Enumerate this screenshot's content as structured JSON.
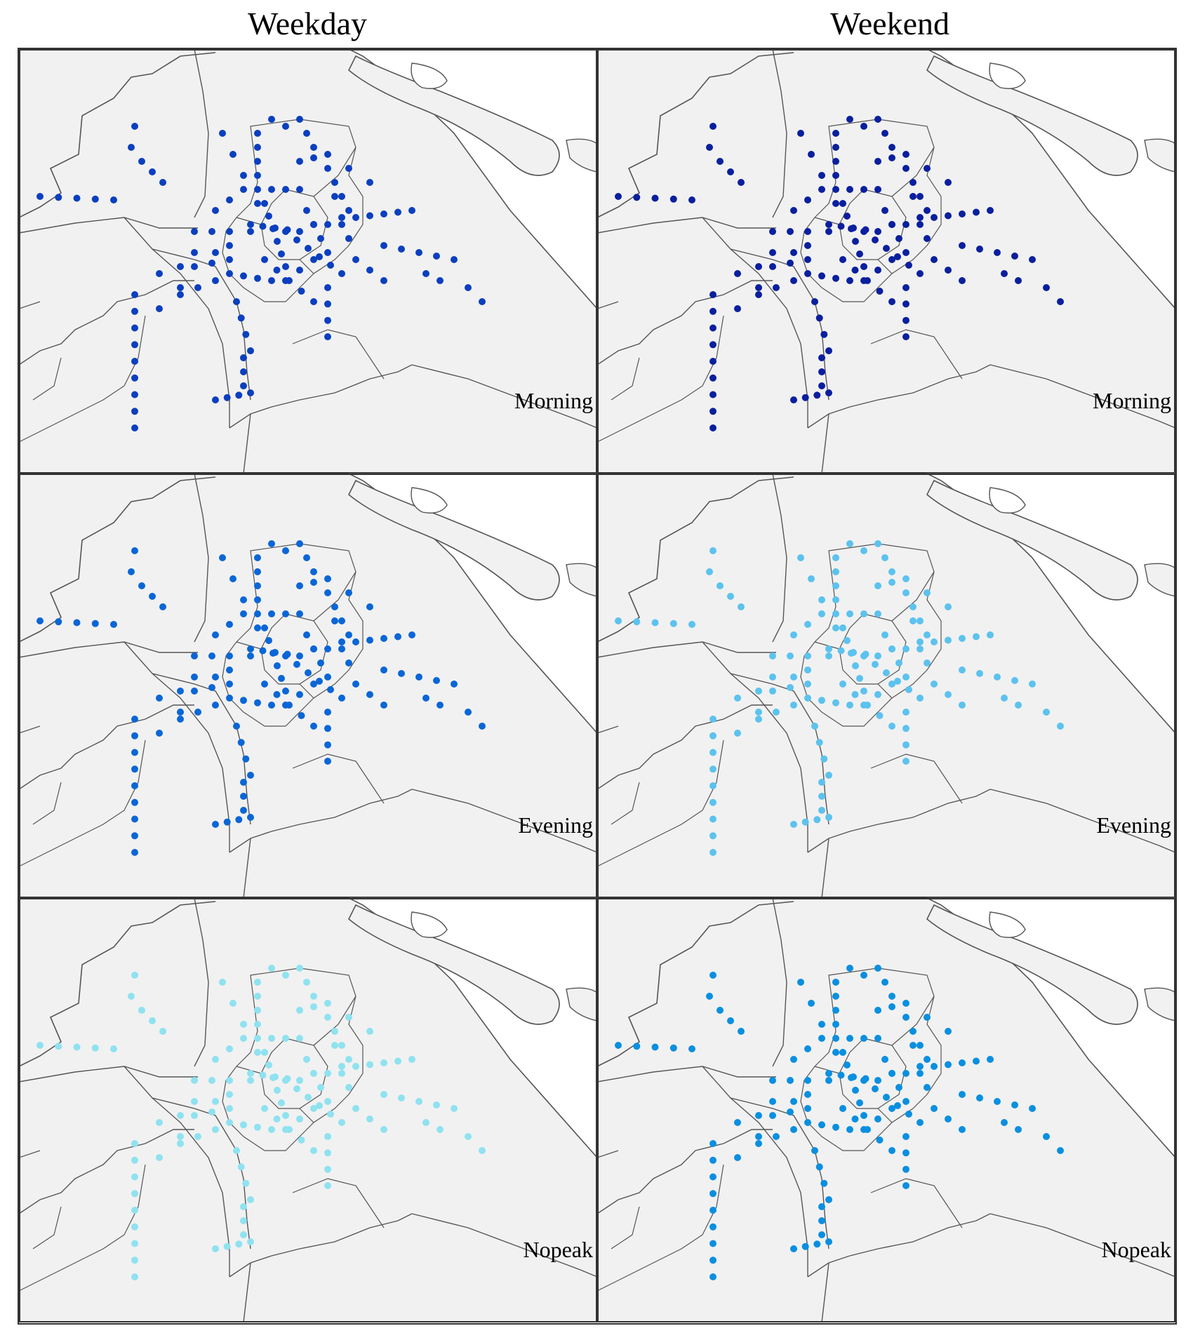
{
  "columns": {
    "weekday": "Weekday",
    "weekend": "Weekend"
  },
  "panels": [
    {
      "id": "weekday-morning",
      "label": "Morning",
      "color": "#0b3fbf"
    },
    {
      "id": "weekend-morning",
      "label": "Morning",
      "color": "#0a1f9e"
    },
    {
      "id": "weekday-evening",
      "label": "Evening",
      "color": "#0a66d6"
    },
    {
      "id": "weekend-evening",
      "label": "Evening",
      "color": "#5cc2ee"
    },
    {
      "id": "weekday-nopeak",
      "label": "Nopeak",
      "color": "#8fe2f0"
    },
    {
      "id": "weekend-nopeak",
      "label": "Nopeak",
      "color": "#0a8fe0"
    }
  ],
  "colors": {
    "land": "#f1f1f1",
    "water": "#ffffff",
    "boundary": "#555555"
  }
}
